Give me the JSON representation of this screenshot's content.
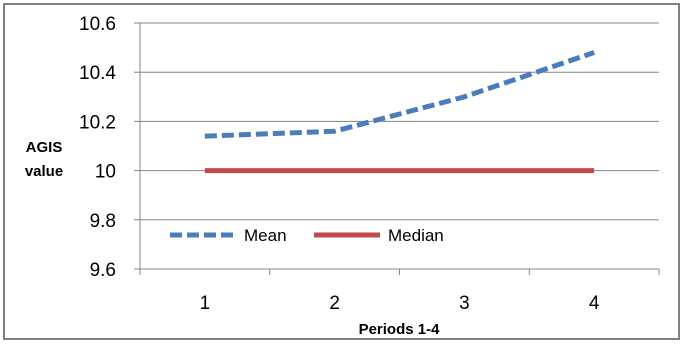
{
  "chart_data": {
    "type": "line",
    "title": "",
    "xlabel": "Periods 1-4",
    "ylabel_lines": [
      "AGIS",
      "value"
    ],
    "categories": [
      "1",
      "2",
      "3",
      "4"
    ],
    "ylim": [
      9.6,
      10.6
    ],
    "yticks": [
      "9.6",
      "9.8",
      "10",
      "10.2",
      "10.4",
      "10.6"
    ],
    "grid": true,
    "legend": "bottom-left",
    "series": [
      {
        "name": "Mean",
        "values": [
          10.14,
          10.16,
          10.3,
          10.48
        ],
        "color": "#4a7ebb",
        "style": "dashed"
      },
      {
        "name": "Median",
        "values": [
          10.0,
          10.0,
          10.0,
          10.0
        ],
        "color": "#be4b48",
        "style": "solid"
      }
    ]
  }
}
